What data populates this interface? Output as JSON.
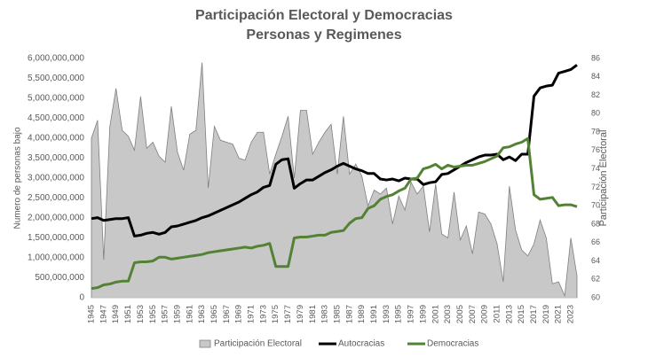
{
  "chart_data": {
    "type": "combo",
    "title": "Participación Electoral y Democracias",
    "subtitle": "Personas y Regimenes",
    "y_label": "Numero de personas bajo",
    "y2_label": "Participación Electoral",
    "categories": [
      "1945",
      null,
      "1947",
      null,
      "1949",
      null,
      "1951",
      null,
      "1953",
      null,
      "1955",
      null,
      "1957",
      null,
      "1959",
      null,
      "1961",
      null,
      "1963",
      null,
      "1965",
      null,
      "1967",
      null,
      "1969",
      null,
      "1971",
      null,
      "1973",
      null,
      "1975",
      null,
      "1977",
      null,
      "1979",
      null,
      "1981",
      null,
      "1983",
      null,
      "1985",
      null,
      "1987",
      null,
      "1989",
      null,
      "1991",
      null,
      "1993",
      null,
      "1995",
      null,
      "1997",
      null,
      "1999",
      null,
      "2001",
      null,
      "2003",
      null,
      "2005",
      null,
      "2007",
      null,
      "2009",
      null,
      "2011",
      null,
      "2013",
      null,
      "2015",
      null,
      "2017",
      null,
      "2019",
      null,
      "2021",
      null,
      "2023",
      null
    ],
    "series": [
      {
        "name": "Participación Electoral",
        "type": "area",
        "axis": "y",
        "color": "#c8c8c8",
        "values": [
          4000000000,
          4450000000,
          950000000,
          4300000000,
          5250000000,
          4200000000,
          4050000000,
          3700000000,
          5050000000,
          3750000000,
          3900000000,
          3550000000,
          3400000000,
          4800000000,
          3650000000,
          3200000000,
          4100000000,
          4200000000,
          5900000000,
          2750000000,
          4300000000,
          3950000000,
          3900000000,
          3850000000,
          3500000000,
          3450000000,
          3900000000,
          4150000000,
          4150000000,
          3100000000,
          3600000000,
          4050000000,
          4550000000,
          3000000000,
          4700000000,
          4700000000,
          3600000000,
          3900000000,
          4150000000,
          4350000000,
          3100000000,
          4550000000,
          3100000000,
          3350000000,
          3050000000,
          2300000000,
          2700000000,
          2600000000,
          2750000000,
          1850000000,
          2550000000,
          2200000000,
          2900000000,
          2600000000,
          2800000000,
          1650000000,
          2850000000,
          1600000000,
          1500000000,
          2650000000,
          1450000000,
          1800000000,
          1100000000,
          2150000000,
          2100000000,
          1850000000,
          1350000000,
          400000000,
          2800000000,
          1700000000,
          1200000000,
          1050000000,
          1350000000,
          1950000000,
          1500000000,
          350000000,
          400000000,
          50000000,
          1500000000,
          550000000
        ]
      },
      {
        "name": "Autocracias",
        "type": "line",
        "axis": "y2",
        "color": "#000000",
        "values": [
          68.6,
          68.7,
          68.4,
          68.5,
          68.6,
          68.6,
          68.7,
          66.7,
          66.8,
          67.0,
          67.1,
          66.9,
          67.1,
          67.7,
          67.8,
          68.0,
          68.2,
          68.4,
          68.7,
          68.9,
          69.2,
          69.5,
          69.8,
          70.1,
          70.4,
          70.8,
          71.2,
          71.5,
          72.0,
          72.2,
          74.5,
          75.0,
          75.1,
          71.9,
          72.4,
          72.8,
          72.8,
          73.2,
          73.6,
          73.9,
          74.3,
          74.6,
          74.3,
          74.0,
          73.8,
          73.5,
          73.5,
          72.9,
          72.8,
          72.9,
          72.7,
          73.0,
          72.9,
          72.9,
          72.3,
          72.5,
          72.6,
          73.4,
          73.5,
          73.9,
          74.3,
          74.7,
          75.0,
          75.3,
          75.5,
          75.5,
          75.6,
          75.0,
          75.3,
          74.9,
          75.6,
          75.6,
          81.9,
          82.8,
          83.0,
          83.1,
          84.4,
          84.6,
          84.8,
          85.3
        ]
      },
      {
        "name": "Democracias",
        "type": "line",
        "axis": "y2",
        "color": "#548235",
        "values": [
          61.0,
          61.1,
          61.4,
          61.5,
          61.7,
          61.8,
          61.8,
          63.8,
          63.9,
          63.9,
          64.0,
          64.4,
          64.4,
          64.2,
          64.3,
          64.4,
          64.5,
          64.6,
          64.7,
          64.9,
          65.0,
          65.1,
          65.2,
          65.3,
          65.4,
          65.5,
          65.4,
          65.6,
          65.7,
          65.9,
          63.4,
          63.4,
          63.4,
          66.5,
          66.6,
          66.6,
          66.7,
          66.8,
          66.8,
          67.1,
          67.2,
          67.3,
          68.1,
          68.6,
          68.7,
          69.7,
          70.0,
          70.7,
          71.0,
          71.2,
          71.6,
          71.9,
          72.9,
          73.0,
          74.0,
          74.2,
          74.5,
          74.0,
          74.4,
          74.2,
          74.3,
          74.4,
          74.4,
          74.6,
          74.8,
          75.1,
          75.4,
          76.3,
          76.4,
          76.7,
          76.9,
          77.3,
          71.2,
          70.7,
          70.8,
          70.9,
          70.0,
          70.1,
          70.1,
          69.9
        ]
      }
    ],
    "ylim": [
      0,
      6000000000
    ],
    "yticks": [
      0,
      {
        "value": 500000000,
        "label": "500,000,000"
      },
      {
        "value": 1000000000,
        "label": "1,000,000,000"
      },
      {
        "value": 1500000000,
        "label": "1,500,000,000"
      },
      {
        "value": 2000000000,
        "label": "2,000,000,000"
      },
      {
        "value": 2500000000,
        "label": "2,500,000,000"
      },
      {
        "value": 3000000000,
        "label": "3,000,000,000"
      },
      {
        "value": 3500000000,
        "label": "3,500,000,000"
      },
      {
        "value": 4000000000,
        "label": "4,000,000,000"
      },
      {
        "value": 4500000000,
        "label": "4,500,000,000"
      },
      {
        "value": 5000000000,
        "label": "5,000,000,000"
      },
      {
        "value": 5500000000,
        "label": "5,500,000,000"
      },
      {
        "value": 6000000000,
        "label": "6,000,000,000"
      }
    ],
    "y2lim": [
      60,
      86
    ],
    "y2ticks": [
      60,
      62,
      64,
      66,
      68,
      70,
      72,
      74,
      76,
      78,
      80,
      82,
      84,
      86
    ],
    "grid": false,
    "legend": "bottom"
  }
}
